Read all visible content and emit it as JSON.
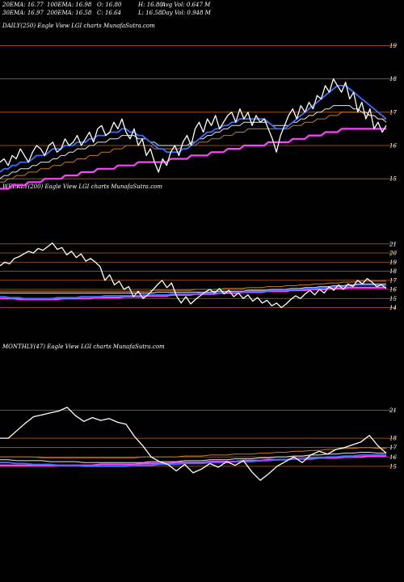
{
  "header": {
    "row1": [
      "20EMA: 16.77",
      "100EMA: 16.98",
      "O: 16.80",
      "H: 16.80",
      "Avg Vol: 0.647  M"
    ],
    "row2": [
      "30EMA: 16.97",
      "200EMA: 16.58",
      "C: 16.64",
      "L: 16.58",
      "Day Vol: 0.948  M"
    ]
  },
  "panels": {
    "daily_label": "DAILY(250) Eagle   View  LGI charts MunafaSutra.com",
    "weekly_label": "WEEKLY(200) Eagle   View  LGI charts MunafaSutra.com",
    "monthly_label": "MONTHLY(47) Eagle   View  LGI charts MunafaSutra.com"
  },
  "colors": {
    "grid": "#b8651b",
    "price": "#ffffff",
    "ema_fast": "#3a6fff",
    "ema_slow": "#ff40ff",
    "ema_mid": "#e8e8e8",
    "ema_brown": "#c87a2a"
  },
  "chart_data": [
    {
      "type": "line",
      "name": "daily",
      "ylim": [
        14.3,
        19.4
      ],
      "yticks": [
        "19",
        "18",
        "17",
        "16",
        "15"
      ],
      "price": [
        15.5,
        15.6,
        15.4,
        15.7,
        15.6,
        15.9,
        15.7,
        15.5,
        15.8,
        16.0,
        15.9,
        15.7,
        16.0,
        16.1,
        15.8,
        15.9,
        16.2,
        16.0,
        16.1,
        16.3,
        16.0,
        16.2,
        16.4,
        16.1,
        16.5,
        16.6,
        16.3,
        16.4,
        16.7,
        16.5,
        16.8,
        16.4,
        16.2,
        16.5,
        16.0,
        16.2,
        15.7,
        15.9,
        15.5,
        15.2,
        15.6,
        15.4,
        15.8,
        16.0,
        15.7,
        16.1,
        16.3,
        16.0,
        16.5,
        16.7,
        16.4,
        16.8,
        16.6,
        16.9,
        16.5,
        16.7,
        16.9,
        17.0,
        16.7,
        17.1,
        16.8,
        17.0,
        16.6,
        16.9,
        16.7,
        16.8,
        16.5,
        16.2,
        15.8,
        16.3,
        16.6,
        16.9,
        17.1,
        16.8,
        17.2,
        17.0,
        17.3,
        17.1,
        17.5,
        17.4,
        17.8,
        17.6,
        18.0,
        17.8,
        17.6,
        17.9,
        17.4,
        17.6,
        17.0,
        17.3,
        16.8,
        17.1,
        16.5,
        16.7,
        16.4,
        16.6
      ],
      "ema_fast": [
        15.2,
        15.3,
        15.3,
        15.4,
        15.4,
        15.5,
        15.5,
        15.5,
        15.6,
        15.7,
        15.7,
        15.7,
        15.8,
        15.9,
        15.9,
        15.9,
        16.0,
        16.0,
        16.0,
        16.1,
        16.1,
        16.1,
        16.2,
        16.2,
        16.3,
        16.3,
        16.3,
        16.4,
        16.4,
        16.4,
        16.5,
        16.5,
        16.4,
        16.4,
        16.3,
        16.3,
        16.2,
        16.1,
        16.0,
        15.9,
        15.9,
        15.8,
        15.8,
        15.8,
        15.8,
        15.9,
        15.9,
        16.0,
        16.1,
        16.2,
        16.3,
        16.4,
        16.4,
        16.5,
        16.5,
        16.6,
        16.6,
        16.7,
        16.7,
        16.8,
        16.8,
        16.8,
        16.8,
        16.8,
        16.8,
        16.8,
        16.7,
        16.6,
        16.5,
        16.5,
        16.5,
        16.6,
        16.7,
        16.8,
        16.9,
        17.0,
        17.1,
        17.2,
        17.3,
        17.4,
        17.5,
        17.6,
        17.7,
        17.8,
        17.8,
        17.8,
        17.7,
        17.6,
        17.5,
        17.4,
        17.3,
        17.2,
        17.1,
        17.0,
        16.9,
        16.8
      ],
      "ema_mid": [
        15.0,
        15.1,
        15.1,
        15.2,
        15.2,
        15.3,
        15.3,
        15.3,
        15.4,
        15.4,
        15.5,
        15.5,
        15.5,
        15.6,
        15.6,
        15.7,
        15.7,
        15.8,
        15.8,
        15.9,
        15.9,
        15.9,
        16.0,
        16.0,
        16.1,
        16.1,
        16.1,
        16.2,
        16.2,
        16.2,
        16.3,
        16.3,
        16.3,
        16.3,
        16.2,
        16.2,
        16.2,
        16.1,
        16.1,
        16.0,
        16.0,
        16.0,
        16.0,
        16.0,
        16.0,
        16.0,
        16.0,
        16.1,
        16.1,
        16.2,
        16.2,
        16.3,
        16.3,
        16.4,
        16.4,
        16.5,
        16.5,
        16.6,
        16.6,
        16.6,
        16.7,
        16.7,
        16.7,
        16.7,
        16.7,
        16.7,
        16.7,
        16.6,
        16.6,
        16.6,
        16.6,
        16.6,
        16.7,
        16.7,
        16.8,
        16.8,
        16.9,
        16.9,
        17.0,
        17.0,
        17.1,
        17.1,
        17.2,
        17.2,
        17.2,
        17.2,
        17.2,
        17.1,
        17.1,
        17.0,
        17.0,
        16.9,
        16.9,
        16.8,
        16.8,
        16.7
      ],
      "ema_brown": [
        14.9,
        14.9,
        15.0,
        15.0,
        15.1,
        15.1,
        15.1,
        15.2,
        15.2,
        15.2,
        15.3,
        15.3,
        15.3,
        15.4,
        15.4,
        15.4,
        15.5,
        15.5,
        15.5,
        15.6,
        15.6,
        15.6,
        15.7,
        15.7,
        15.7,
        15.8,
        15.8,
        15.8,
        15.9,
        15.9,
        15.9,
        16.0,
        16.0,
        16.0,
        16.0,
        16.0,
        16.0,
        16.0,
        15.9,
        15.9,
        15.9,
        15.9,
        15.9,
        15.9,
        15.9,
        16.0,
        16.0,
        16.0,
        16.0,
        16.1,
        16.1,
        16.1,
        16.2,
        16.2,
        16.2,
        16.3,
        16.3,
        16.3,
        16.4,
        16.4,
        16.4,
        16.5,
        16.5,
        16.5,
        16.5,
        16.5,
        16.5,
        16.5,
        16.5,
        16.5,
        16.5,
        16.5,
        16.6,
        16.6,
        16.6,
        16.7,
        16.7,
        16.7,
        16.8,
        16.8,
        16.8,
        16.9,
        16.9,
        16.9,
        17.0,
        17.0,
        17.0,
        17.0,
        17.0,
        17.0,
        16.9,
        16.9,
        16.9,
        16.8,
        16.8,
        16.8
      ],
      "ema_slow": [
        14.7,
        14.7,
        14.7,
        14.8,
        14.8,
        14.8,
        14.8,
        14.9,
        14.9,
        14.9,
        14.9,
        15.0,
        15.0,
        15.0,
        15.0,
        15.0,
        15.1,
        15.1,
        15.1,
        15.1,
        15.2,
        15.2,
        15.2,
        15.2,
        15.3,
        15.3,
        15.3,
        15.3,
        15.3,
        15.4,
        15.4,
        15.4,
        15.4,
        15.4,
        15.5,
        15.5,
        15.5,
        15.5,
        15.5,
        15.5,
        15.5,
        15.5,
        15.6,
        15.6,
        15.6,
        15.6,
        15.6,
        15.7,
        15.7,
        15.7,
        15.7,
        15.7,
        15.8,
        15.8,
        15.8,
        15.8,
        15.9,
        15.9,
        15.9,
        15.9,
        16.0,
        16.0,
        16.0,
        16.0,
        16.0,
        16.0,
        16.1,
        16.1,
        16.1,
        16.1,
        16.1,
        16.1,
        16.2,
        16.2,
        16.2,
        16.2,
        16.3,
        16.3,
        16.3,
        16.3,
        16.4,
        16.4,
        16.4,
        16.4,
        16.5,
        16.5,
        16.5,
        16.5,
        16.5,
        16.5,
        16.5,
        16.5,
        16.5,
        16.5,
        16.5,
        16.5
      ]
    },
    {
      "type": "line",
      "name": "weekly",
      "ylim": [
        13.6,
        21.6
      ],
      "yticks": [
        "21",
        "20",
        "19",
        "18",
        "17",
        "16",
        "15",
        "14"
      ],
      "price": [
        18.6,
        19.0,
        18.8,
        19.4,
        19.6,
        19.9,
        20.2,
        20.0,
        20.5,
        20.3,
        20.7,
        21.1,
        20.4,
        20.6,
        19.8,
        20.2,
        19.5,
        19.9,
        19.1,
        19.4,
        19.0,
        18.5,
        17.0,
        17.6,
        16.5,
        16.9,
        16.0,
        16.3,
        15.2,
        15.8,
        15.0,
        15.4,
        15.9,
        16.5,
        17.0,
        16.2,
        16.7,
        15.3,
        14.5,
        15.2,
        14.4,
        14.9,
        15.3,
        15.7,
        16.0,
        15.6,
        16.1,
        15.5,
        15.9,
        15.2,
        15.6,
        15.0,
        15.4,
        14.7,
        15.1,
        14.5,
        14.8,
        14.2,
        14.5,
        14.0,
        14.4,
        14.9,
        15.3,
        15.0,
        15.5,
        15.9,
        15.4,
        16.0,
        15.6,
        16.3,
        15.9,
        16.5,
        16.0,
        16.6,
        16.3,
        17.0,
        16.6,
        17.2,
        16.8,
        16.3,
        16.5,
        16.1
      ],
      "ema_fast": [
        15.2,
        15.2,
        15.1,
        15.1,
        15.1,
        15.0,
        15.0,
        15.0,
        15.0,
        15.0,
        15.0,
        15.0,
        15.1,
        15.1,
        15.1,
        15.1,
        15.1,
        15.2,
        15.2,
        15.2,
        15.2,
        15.2,
        15.3,
        15.3,
        15.3,
        15.3,
        15.3,
        15.3,
        15.3,
        15.3,
        15.4,
        15.4,
        15.4,
        15.4,
        15.4,
        15.4,
        15.5,
        15.5,
        15.5,
        15.5,
        15.5,
        15.5,
        15.6,
        15.6,
        15.6,
        15.6,
        15.6,
        15.7,
        15.7,
        15.7,
        15.7,
        15.7,
        15.8,
        15.8,
        15.8,
        15.8,
        15.8,
        15.9,
        15.9,
        15.9,
        15.9,
        16.0,
        16.0,
        16.0,
        16.1,
        16.1,
        16.1,
        16.2,
        16.2,
        16.2,
        16.3,
        16.3,
        16.3,
        16.4,
        16.4,
        16.5,
        16.5,
        16.5,
        16.5,
        16.5,
        16.5,
        16.4
      ],
      "ema_slow": [
        15.0,
        15.0,
        15.0,
        15.0,
        14.9,
        14.9,
        14.9,
        14.9,
        14.9,
        14.9,
        14.9,
        14.9,
        14.9,
        15.0,
        15.0,
        15.0,
        15.0,
        15.0,
        15.0,
        15.0,
        15.1,
        15.1,
        15.1,
        15.1,
        15.1,
        15.1,
        15.2,
        15.2,
        15.2,
        15.2,
        15.2,
        15.3,
        15.3,
        15.3,
        15.3,
        15.3,
        15.4,
        15.4,
        15.4,
        15.4,
        15.4,
        15.5,
        15.5,
        15.5,
        15.5,
        15.5,
        15.6,
        15.6,
        15.6,
        15.6,
        15.6,
        15.7,
        15.7,
        15.7,
        15.7,
        15.7,
        15.8,
        15.8,
        15.8,
        15.8,
        15.8,
        15.9,
        15.9,
        15.9,
        15.9,
        16.0,
        16.0,
        16.0,
        16.0,
        16.1,
        16.1,
        16.1,
        16.1,
        16.2,
        16.2,
        16.2,
        16.2,
        16.2,
        16.2,
        16.2,
        16.2,
        16.2
      ],
      "ema_mid": [
        15.6,
        15.6,
        15.6,
        15.6,
        15.6,
        15.6,
        15.6,
        15.6,
        15.6,
        15.6,
        15.6,
        15.6,
        15.6,
        15.6,
        15.6,
        15.6,
        15.6,
        15.6,
        15.6,
        15.6,
        15.6,
        15.6,
        15.6,
        15.6,
        15.6,
        15.6,
        15.6,
        15.6,
        15.6,
        15.6,
        15.6,
        15.6,
        15.6,
        15.7,
        15.7,
        15.7,
        15.7,
        15.7,
        15.7,
        15.7,
        15.7,
        15.7,
        15.7,
        15.7,
        15.7,
        15.8,
        15.8,
        15.8,
        15.8,
        15.8,
        15.8,
        15.8,
        15.9,
        15.9,
        15.9,
        15.9,
        15.9,
        16.0,
        16.0,
        16.0,
        16.0,
        16.1,
        16.1,
        16.1,
        16.2,
        16.2,
        16.2,
        16.3,
        16.3,
        16.3,
        16.4,
        16.4,
        16.4,
        16.5,
        16.5,
        16.6,
        16.6,
        16.6,
        16.6,
        16.6,
        16.6,
        16.6
      ],
      "ema_brown": [
        15.8,
        15.8,
        15.8,
        15.8,
        15.8,
        15.8,
        15.8,
        15.8,
        15.8,
        15.8,
        15.8,
        15.8,
        15.8,
        15.8,
        15.8,
        15.8,
        15.8,
        15.8,
        15.8,
        15.8,
        15.8,
        15.8,
        15.8,
        15.8,
        15.8,
        15.8,
        15.8,
        15.8,
        15.8,
        15.8,
        15.8,
        15.8,
        15.9,
        15.9,
        15.9,
        15.9,
        15.9,
        15.9,
        15.9,
        15.9,
        15.9,
        16.0,
        16.0,
        16.0,
        16.0,
        16.0,
        16.0,
        16.1,
        16.1,
        16.1,
        16.1,
        16.1,
        16.2,
        16.2,
        16.2,
        16.2,
        16.3,
        16.3,
        16.3,
        16.3,
        16.4,
        16.4,
        16.4,
        16.5,
        16.5,
        16.5,
        16.6,
        16.6,
        16.6,
        16.7,
        16.7,
        16.7,
        16.8,
        16.8,
        16.8,
        16.9,
        16.9,
        16.9,
        16.9,
        16.9,
        16.9,
        16.9
      ]
    },
    {
      "type": "line",
      "name": "monthly",
      "ylim": [
        13.0,
        22.5
      ],
      "yticks": [
        "21",
        "18",
        "17",
        "16",
        "15"
      ],
      "price": [
        18.0,
        18.0,
        18.8,
        19.6,
        20.3,
        20.5,
        20.7,
        20.9,
        21.3,
        20.4,
        19.8,
        20.2,
        19.9,
        20.1,
        19.7,
        19.5,
        18.2,
        17.2,
        16.0,
        15.5,
        15.2,
        14.5,
        15.2,
        14.3,
        14.7,
        15.3,
        14.9,
        15.5,
        15.1,
        15.6,
        14.4,
        13.5,
        14.2,
        15.0,
        15.5,
        16.0,
        15.4,
        16.2,
        16.6,
        16.3,
        16.8,
        17.0,
        17.3,
        17.6,
        18.3,
        17.2,
        16.4
      ],
      "ema_fast": [
        15.4,
        15.4,
        15.3,
        15.3,
        15.2,
        15.2,
        15.2,
        15.1,
        15.1,
        15.1,
        15.0,
        15.0,
        15.0,
        15.0,
        15.0,
        15.0,
        15.1,
        15.1,
        15.1,
        15.2,
        15.2,
        15.2,
        15.3,
        15.3,
        15.3,
        15.4,
        15.4,
        15.4,
        15.5,
        15.5,
        15.5,
        15.6,
        15.6,
        15.7,
        15.7,
        15.8,
        15.8,
        15.9,
        15.9,
        16.0,
        16.0,
        16.1,
        16.1,
        16.2,
        16.2,
        16.2,
        16.2
      ],
      "ema_slow": [
        15.1,
        15.1,
        15.1,
        15.1,
        15.1,
        15.1,
        15.1,
        15.1,
        15.1,
        15.1,
        15.1,
        15.1,
        15.2,
        15.2,
        15.2,
        15.2,
        15.2,
        15.3,
        15.3,
        15.3,
        15.3,
        15.4,
        15.4,
        15.4,
        15.4,
        15.5,
        15.5,
        15.5,
        15.5,
        15.6,
        15.6,
        15.6,
        15.7,
        15.7,
        15.7,
        15.8,
        15.8,
        15.8,
        15.9,
        15.9,
        15.9,
        16.0,
        16.0,
        16.0,
        16.1,
        16.1,
        16.1
      ],
      "ema_mid": [
        15.7,
        15.7,
        15.6,
        15.6,
        15.6,
        15.6,
        15.5,
        15.5,
        15.5,
        15.5,
        15.4,
        15.4,
        15.4,
        15.4,
        15.4,
        15.4,
        15.4,
        15.4,
        15.5,
        15.5,
        15.5,
        15.5,
        15.6,
        15.6,
        15.6,
        15.7,
        15.7,
        15.7,
        15.8,
        15.8,
        15.8,
        15.9,
        15.9,
        16.0,
        16.0,
        16.1,
        16.1,
        16.2,
        16.2,
        16.3,
        16.3,
        16.4,
        16.4,
        16.5,
        16.5,
        16.4,
        16.4
      ],
      "ema_brown": [
        16.0,
        16.0,
        16.0,
        16.0,
        16.0,
        15.9,
        15.9,
        15.9,
        15.9,
        15.9,
        15.9,
        15.9,
        15.9,
        15.9,
        15.9,
        15.9,
        15.9,
        16.0,
        16.0,
        16.0,
        16.0,
        16.0,
        16.1,
        16.1,
        16.1,
        16.2,
        16.2,
        16.2,
        16.3,
        16.3,
        16.3,
        16.4,
        16.4,
        16.5,
        16.5,
        16.6,
        16.6,
        16.7,
        16.7,
        16.8,
        16.8,
        16.9,
        16.9,
        17.0,
        17.0,
        16.9,
        16.9
      ]
    }
  ]
}
